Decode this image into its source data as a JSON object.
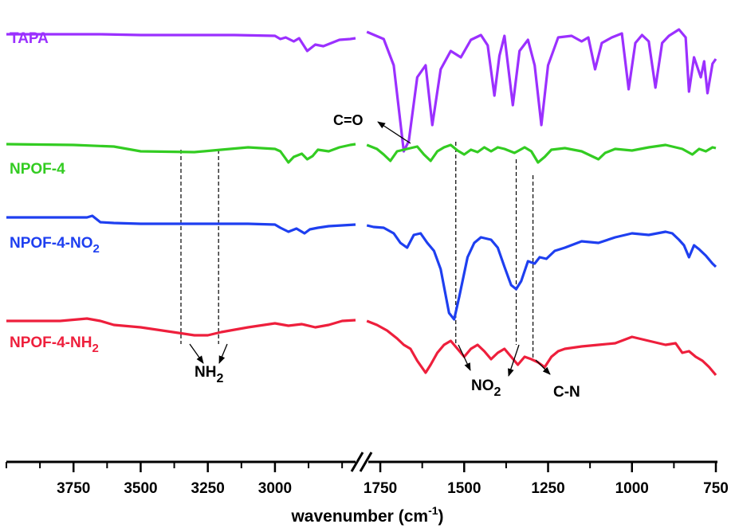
{
  "chart_data": {
    "type": "line",
    "title": "",
    "xlabel": "wavenumber",
    "xlabel_unit": "(cm",
    "xlabel_unit_exp": "-1",
    "xlabel_unit_close": ")",
    "ylabel": "",
    "x_segments": [
      {
        "range": [
          4000,
          2700
        ],
        "tick_values": [
          3750,
          3500,
          3250,
          3000
        ]
      },
      {
        "range": [
          1800,
          750
        ],
        "tick_values": [
          1750,
          1500,
          1250,
          1000,
          750
        ]
      }
    ],
    "axis_break": true,
    "grid": false,
    "series": [
      {
        "name": "TAPA",
        "color": "#9b30ff",
        "segment1": [
          [
            4000,
            -1
          ],
          [
            3750,
            -1
          ],
          [
            3650,
            -1
          ],
          [
            3500,
            -2
          ],
          [
            3250,
            -2
          ],
          [
            3150,
            -2
          ],
          [
            3000,
            -3
          ],
          [
            2980,
            -7
          ],
          [
            2960,
            -5
          ],
          [
            2930,
            -10
          ],
          [
            2910,
            -6
          ],
          [
            2880,
            -22
          ],
          [
            2850,
            -14
          ],
          [
            2820,
            -16
          ],
          [
            2790,
            -12
          ],
          [
            2760,
            -8
          ],
          [
            2720,
            -7
          ],
          [
            2700,
            -6
          ]
        ],
        "segment2": [
          [
            1790,
            2
          ],
          [
            1740,
            -7
          ],
          [
            1710,
            -40
          ],
          [
            1680,
            -148
          ],
          [
            1665,
            -135
          ],
          [
            1640,
            -55
          ],
          [
            1615,
            -40
          ],
          [
            1595,
            -115
          ],
          [
            1570,
            -45
          ],
          [
            1540,
            -22
          ],
          [
            1510,
            -30
          ],
          [
            1480,
            -8
          ],
          [
            1450,
            -2
          ],
          [
            1430,
            -15
          ],
          [
            1410,
            -78
          ],
          [
            1395,
            -28
          ],
          [
            1380,
            -3
          ],
          [
            1355,
            -90
          ],
          [
            1335,
            -22
          ],
          [
            1310,
            -8
          ],
          [
            1290,
            -40
          ],
          [
            1270,
            -115
          ],
          [
            1250,
            -40
          ],
          [
            1220,
            -5
          ],
          [
            1180,
            -3
          ],
          [
            1150,
            -10
          ],
          [
            1130,
            -5
          ],
          [
            1110,
            -45
          ],
          [
            1090,
            -12
          ],
          [
            1060,
            -5
          ],
          [
            1030,
            0
          ],
          [
            1010,
            -70
          ],
          [
            990,
            -12
          ],
          [
            970,
            -2
          ],
          [
            950,
            -10
          ],
          [
            930,
            -68
          ],
          [
            910,
            -12
          ],
          [
            890,
            -3
          ],
          [
            860,
            5
          ],
          [
            840,
            -5
          ],
          [
            830,
            -73
          ],
          [
            815,
            -30
          ],
          [
            795,
            -55
          ],
          [
            785,
            -35
          ],
          [
            775,
            -75
          ],
          [
            760,
            -38
          ],
          [
            750,
            -32
          ]
        ]
      },
      {
        "name": "NPOF-4",
        "color": "#33cc22",
        "segment1": [
          [
            4000,
            1
          ],
          [
            3750,
            0
          ],
          [
            3600,
            -2
          ],
          [
            3500,
            -8
          ],
          [
            3300,
            -9
          ],
          [
            3200,
            -6
          ],
          [
            3100,
            -3
          ],
          [
            3000,
            -5
          ],
          [
            2980,
            -8
          ],
          [
            2950,
            -22
          ],
          [
            2930,
            -15
          ],
          [
            2900,
            -11
          ],
          [
            2880,
            -18
          ],
          [
            2860,
            -14
          ],
          [
            2840,
            -6
          ],
          [
            2800,
            -8
          ],
          [
            2760,
            -3
          ],
          [
            2720,
            0
          ],
          [
            2700,
            1
          ]
        ],
        "segment2": [
          [
            1790,
            0
          ],
          [
            1760,
            -5
          ],
          [
            1740,
            -12
          ],
          [
            1720,
            -20
          ],
          [
            1700,
            -8
          ],
          [
            1680,
            -6
          ],
          [
            1660,
            -4
          ],
          [
            1640,
            -2
          ],
          [
            1620,
            -12
          ],
          [
            1600,
            -20
          ],
          [
            1580,
            -8
          ],
          [
            1560,
            -3
          ],
          [
            1540,
            0
          ],
          [
            1520,
            -7
          ],
          [
            1500,
            -12
          ],
          [
            1480,
            -6
          ],
          [
            1460,
            -9
          ],
          [
            1440,
            -3
          ],
          [
            1420,
            -8
          ],
          [
            1400,
            -3
          ],
          [
            1380,
            -5
          ],
          [
            1350,
            -10
          ],
          [
            1320,
            -3
          ],
          [
            1300,
            -8
          ],
          [
            1280,
            -22
          ],
          [
            1260,
            -15
          ],
          [
            1240,
            -6
          ],
          [
            1200,
            -4
          ],
          [
            1150,
            -8
          ],
          [
            1100,
            -18
          ],
          [
            1080,
            -10
          ],
          [
            1050,
            -5
          ],
          [
            1000,
            -7
          ],
          [
            950,
            -3
          ],
          [
            900,
            0
          ],
          [
            850,
            -5
          ],
          [
            820,
            -12
          ],
          [
            800,
            -5
          ],
          [
            780,
            -8
          ],
          [
            760,
            -3
          ],
          [
            750,
            -4
          ]
        ]
      },
      {
        "name": "NPOF-4-NO2",
        "name_base": "NPOF-4-NO",
        "name_sub": "2",
        "color": "#1e3ff0",
        "segment1": [
          [
            4000,
            10
          ],
          [
            3800,
            10
          ],
          [
            3700,
            10
          ],
          [
            3680,
            12
          ],
          [
            3650,
            4
          ],
          [
            3600,
            3
          ],
          [
            3500,
            2
          ],
          [
            3250,
            2
          ],
          [
            3100,
            2
          ],
          [
            3000,
            1
          ],
          [
            2980,
            -3
          ],
          [
            2950,
            -8
          ],
          [
            2920,
            -4
          ],
          [
            2890,
            -10
          ],
          [
            2870,
            -5
          ],
          [
            2840,
            -3
          ],
          [
            2800,
            -1
          ],
          [
            2750,
            0
          ],
          [
            2700,
            1
          ]
        ],
        "segment2": [
          [
            1790,
            0
          ],
          [
            1770,
            -2
          ],
          [
            1740,
            -3
          ],
          [
            1710,
            -10
          ],
          [
            1690,
            -22
          ],
          [
            1670,
            -28
          ],
          [
            1650,
            -12
          ],
          [
            1630,
            -10
          ],
          [
            1610,
            -22
          ],
          [
            1590,
            -32
          ],
          [
            1570,
            -55
          ],
          [
            1545,
            -110
          ],
          [
            1530,
            -118
          ],
          [
            1515,
            -90
          ],
          [
            1490,
            -40
          ],
          [
            1470,
            -22
          ],
          [
            1450,
            -15
          ],
          [
            1420,
            -18
          ],
          [
            1400,
            -28
          ],
          [
            1380,
            -52
          ],
          [
            1360,
            -75
          ],
          [
            1345,
            -80
          ],
          [
            1330,
            -70
          ],
          [
            1310,
            -45
          ],
          [
            1290,
            -48
          ],
          [
            1275,
            -40
          ],
          [
            1255,
            -42
          ],
          [
            1230,
            -32
          ],
          [
            1200,
            -28
          ],
          [
            1150,
            -20
          ],
          [
            1100,
            -22
          ],
          [
            1050,
            -15
          ],
          [
            1000,
            -10
          ],
          [
            950,
            -12
          ],
          [
            900,
            -8
          ],
          [
            880,
            -10
          ],
          [
            860,
            -18
          ],
          [
            845,
            -25
          ],
          [
            830,
            -40
          ],
          [
            815,
            -25
          ],
          [
            800,
            -30
          ],
          [
            780,
            -38
          ],
          [
            760,
            -48
          ],
          [
            750,
            -52
          ]
        ]
      },
      {
        "name": "NPOF-4-NH2",
        "name_base": "NPOF-4-NH",
        "name_sub": "2",
        "color": "#ee1f3c",
        "segment1": [
          [
            4000,
            0
          ],
          [
            3800,
            0
          ],
          [
            3700,
            3
          ],
          [
            3650,
            0
          ],
          [
            3600,
            -5
          ],
          [
            3500,
            -8
          ],
          [
            3400,
            -13
          ],
          [
            3300,
            -18
          ],
          [
            3250,
            -18
          ],
          [
            3200,
            -14
          ],
          [
            3100,
            -8
          ],
          [
            3000,
            -3
          ],
          [
            2950,
            -6
          ],
          [
            2900,
            -4
          ],
          [
            2850,
            -8
          ],
          [
            2800,
            -5
          ],
          [
            2750,
            0
          ],
          [
            2700,
            1
          ]
        ],
        "segment2": [
          [
            1790,
            0
          ],
          [
            1760,
            -5
          ],
          [
            1730,
            -12
          ],
          [
            1700,
            -22
          ],
          [
            1680,
            -30
          ],
          [
            1660,
            -35
          ],
          [
            1640,
            -50
          ],
          [
            1615,
            -65
          ],
          [
            1600,
            -55
          ],
          [
            1580,
            -40
          ],
          [
            1560,
            -30
          ],
          [
            1540,
            -25
          ],
          [
            1520,
            -35
          ],
          [
            1500,
            -45
          ],
          [
            1480,
            -35
          ],
          [
            1460,
            -30
          ],
          [
            1440,
            -38
          ],
          [
            1420,
            -48
          ],
          [
            1400,
            -40
          ],
          [
            1380,
            -35
          ],
          [
            1360,
            -45
          ],
          [
            1340,
            -55
          ],
          [
            1320,
            -45
          ],
          [
            1300,
            -48
          ],
          [
            1280,
            -52
          ],
          [
            1260,
            -58
          ],
          [
            1240,
            -45
          ],
          [
            1220,
            -38
          ],
          [
            1200,
            -35
          ],
          [
            1150,
            -32
          ],
          [
            1100,
            -30
          ],
          [
            1050,
            -28
          ],
          [
            1000,
            -20
          ],
          [
            950,
            -25
          ],
          [
            900,
            -30
          ],
          [
            870,
            -28
          ],
          [
            850,
            -40
          ],
          [
            830,
            -38
          ],
          [
            810,
            -45
          ],
          [
            790,
            -50
          ],
          [
            770,
            -58
          ],
          [
            750,
            -68
          ]
        ]
      }
    ],
    "annotations": [
      {
        "text": "C=O"
      },
      {
        "text_base": "NH",
        "text_sub": "2"
      },
      {
        "text_base": "NO",
        "text_sub": "2"
      },
      {
        "text": "C-N"
      }
    ],
    "guide_lines_x": [
      {
        "segment": 1,
        "x": 3350
      },
      {
        "segment": 1,
        "x": 3210
      },
      {
        "segment": 2,
        "x": 1525
      },
      {
        "segment": 2,
        "x": 1345
      },
      {
        "segment": 2,
        "x": 1295
      }
    ]
  }
}
